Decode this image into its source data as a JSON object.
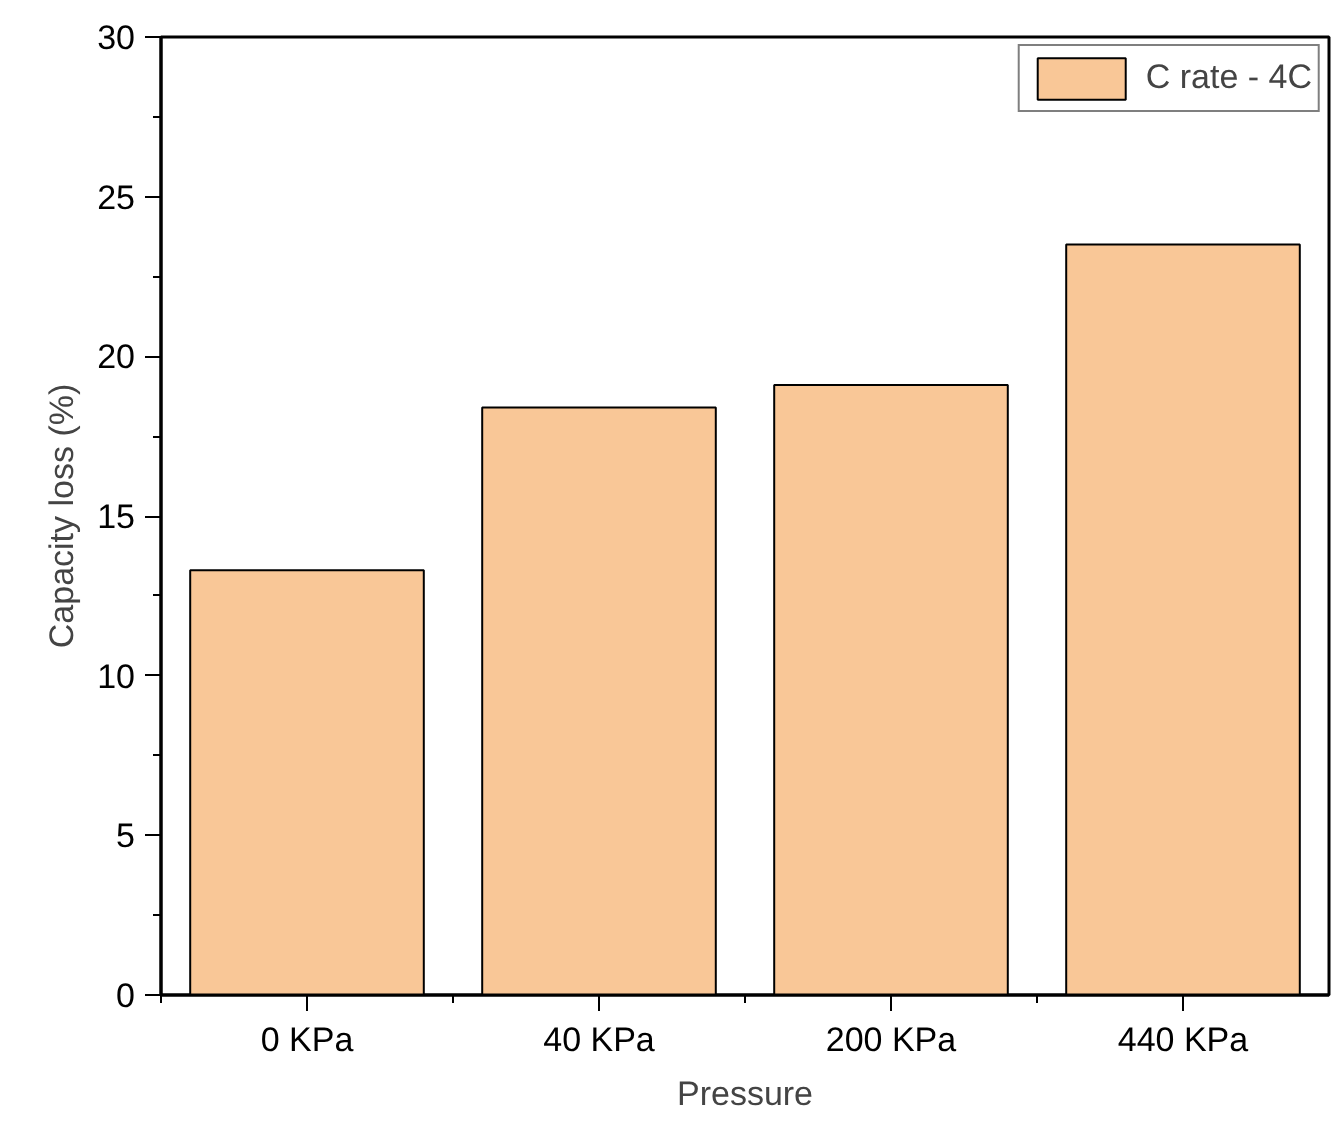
{
  "chart_data": {
    "type": "bar",
    "xlabel": "Pressure",
    "ylabel": "Capacity loss (%)",
    "categories": [
      "0 KPa",
      "40 KPa",
      "200 KPa",
      "440 KPa"
    ],
    "series": [
      {
        "name": "C rate - 4C",
        "color": "#f9c797",
        "values": [
          13.3,
          18.4,
          19.1,
          23.5
        ]
      }
    ],
    "ylim": [
      0,
      30
    ],
    "yticks": [
      0,
      5,
      10,
      15,
      20,
      25,
      30
    ],
    "grid": false,
    "legend": "top right"
  }
}
